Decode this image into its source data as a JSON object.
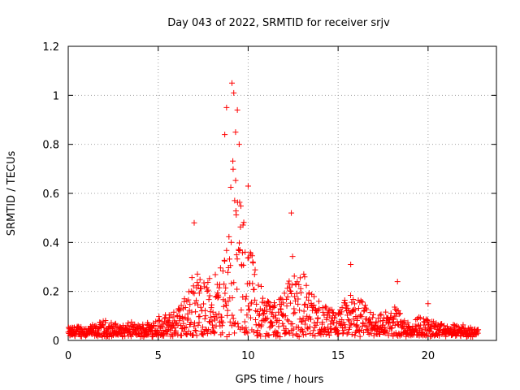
{
  "chart_data": {
    "type": "scatter",
    "title": "Day 043 of 2022, SRMTID for receiver srjv",
    "xlabel": "GPS time / hours",
    "ylabel": "SRMTID / TECUs",
    "xlim": [
      0,
      23.8
    ],
    "ylim": [
      0,
      1.2
    ],
    "xticks": [
      "0",
      "5",
      "10",
      "15",
      "20"
    ],
    "yticks": [
      "0",
      "0.2",
      "0.4",
      "0.6",
      "0.8",
      "1",
      "1.2"
    ],
    "xtick_values": [
      0,
      5,
      10,
      15,
      20
    ],
    "ytick_values": [
      0,
      0.2,
      0.4,
      0.6,
      0.8,
      1.0,
      1.2
    ],
    "grid": true,
    "marker": "+",
    "marker_color": "#ff0000",
    "series": [
      {
        "name": "SRMTID",
        "envelope_x": [
          0,
          0.5,
          1,
          1.5,
          2,
          2.5,
          3,
          3.5,
          4,
          4.5,
          5,
          5.5,
          6,
          6.5,
          7,
          7.5,
          8,
          8.5,
          9,
          9.2,
          9.5,
          10,
          10.5,
          11,
          11.5,
          12,
          12.5,
          13,
          13.5,
          14,
          14.5,
          15,
          15.5,
          16,
          16.5,
          17,
          17.5,
          18,
          18.3,
          18.5,
          19,
          19.5,
          20,
          20.5,
          21,
          21.5,
          22,
          22.5,
          22.8
        ],
        "envelope_y": [
          0.05,
          0.06,
          0.06,
          0.06,
          0.08,
          0.07,
          0.06,
          0.07,
          0.06,
          0.08,
          0.1,
          0.1,
          0.13,
          0.18,
          0.3,
          0.26,
          0.26,
          0.3,
          0.62,
          0.9,
          0.58,
          0.42,
          0.28,
          0.18,
          0.16,
          0.22,
          0.35,
          0.3,
          0.2,
          0.16,
          0.13,
          0.12,
          0.18,
          0.2,
          0.14,
          0.11,
          0.12,
          0.12,
          0.16,
          0.1,
          0.08,
          0.1,
          0.09,
          0.07,
          0.06,
          0.06,
          0.06,
          0.05,
          0.05
        ],
        "peak_points": [
          {
            "x": 7.0,
            "y": 0.48
          },
          {
            "x": 8.7,
            "y": 0.84
          },
          {
            "x": 8.8,
            "y": 0.95
          },
          {
            "x": 9.1,
            "y": 1.05
          },
          {
            "x": 9.2,
            "y": 1.01
          },
          {
            "x": 9.4,
            "y": 0.94
          },
          {
            "x": 9.3,
            "y": 0.85
          },
          {
            "x": 9.5,
            "y": 0.8
          },
          {
            "x": 10.0,
            "y": 0.63
          },
          {
            "x": 12.4,
            "y": 0.52
          },
          {
            "x": 15.7,
            "y": 0.31
          },
          {
            "x": 18.3,
            "y": 0.24
          },
          {
            "x": 20.0,
            "y": 0.15
          }
        ]
      }
    ]
  }
}
